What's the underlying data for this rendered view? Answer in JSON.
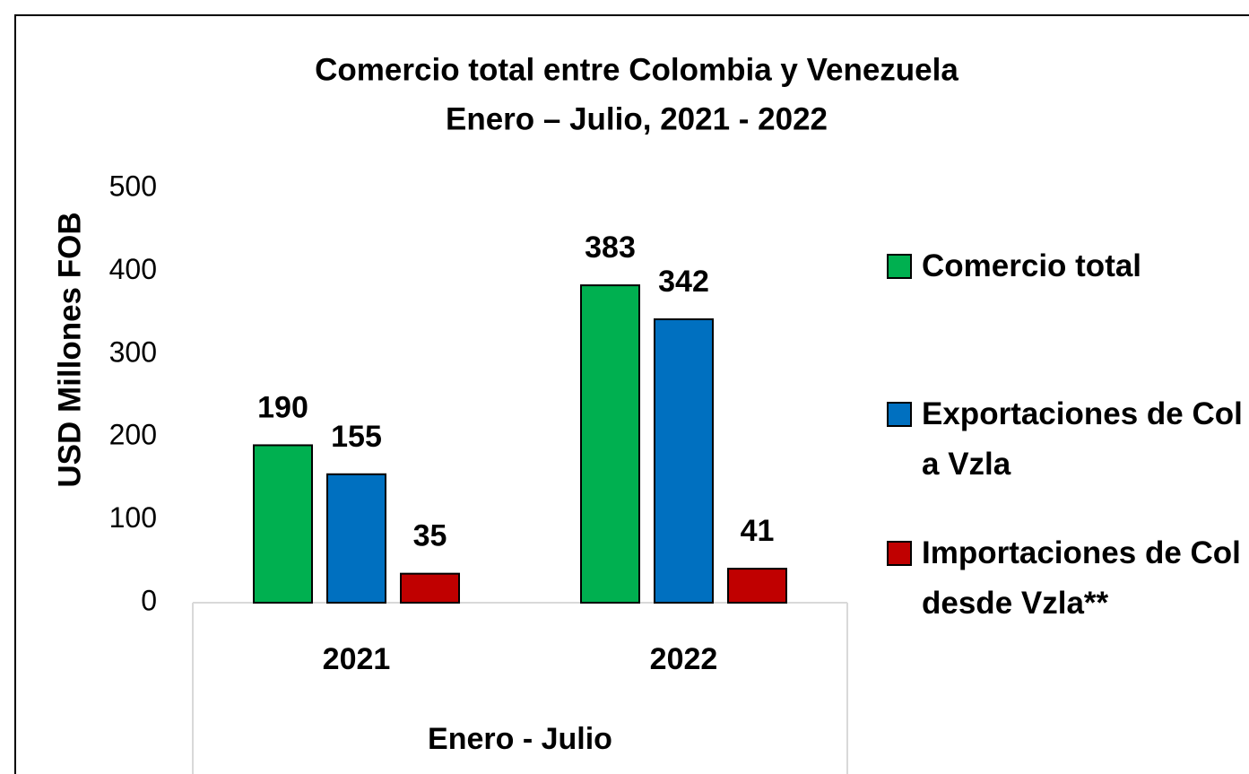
{
  "chart_data": {
    "type": "bar",
    "title": "Comercio total entre Colombia y Venezuela",
    "subtitle": "Enero – Julio, 2021 - 2022",
    "y_label": "USD Millones FOB",
    "x_label": "Enero - Julio",
    "categories": [
      "2021",
      "2022"
    ],
    "series": [
      {
        "name": "Comercio total",
        "color": "#00b050",
        "label_color": "#1e8c1e",
        "values": [
          190,
          383
        ]
      },
      {
        "name": "Exportaciones de Col a Vzla",
        "color": "#0070c0",
        "label_color": "#2f4f7f",
        "values": [
          155,
          342
        ]
      },
      {
        "name": "Importaciones de Col desde Vzla**",
        "color": "#c00000",
        "label_color": "#c00000",
        "values": [
          35,
          41
        ]
      }
    ],
    "ylim": [
      0,
      500
    ],
    "yticks": [
      0,
      100,
      200,
      300,
      400,
      500
    ],
    "grid": false,
    "legend": "right"
  }
}
